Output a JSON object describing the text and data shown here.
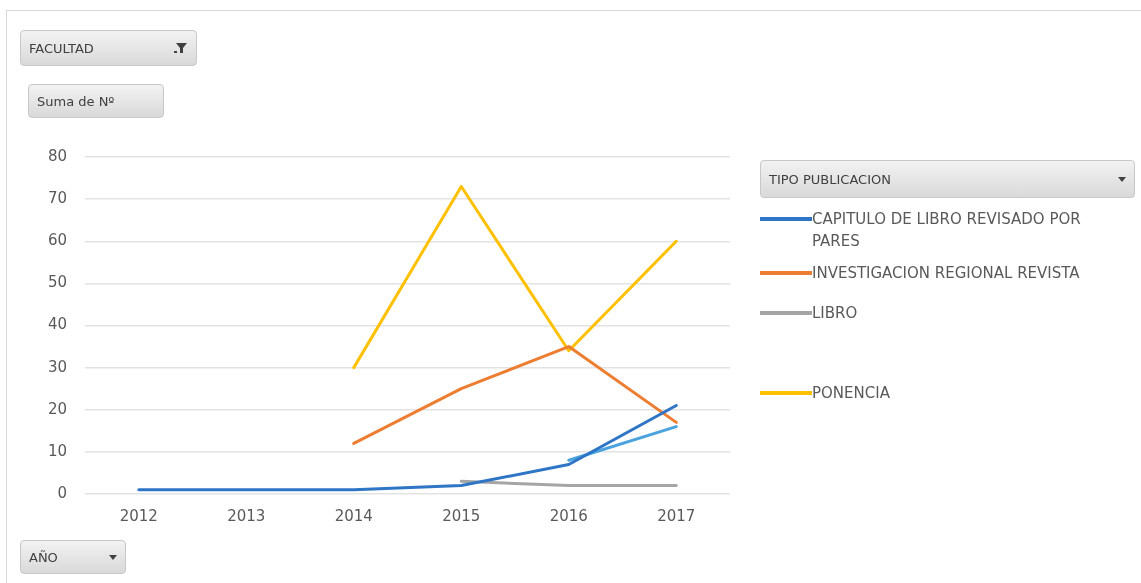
{
  "chart_data": {
    "type": "line",
    "xlabel": "AÑO",
    "ylabel": "Suma de Nº",
    "legend_title": "TIPO PUBLICACION",
    "annotations": [
      "FACULTAD"
    ],
    "categories": [
      "2012",
      "2013",
      "2014",
      "2015",
      "2016",
      "2017"
    ],
    "series": [
      {
        "name": "CAPITULO DE LIBRO REVISADO POR PARES",
        "color": "#2e75c6",
        "values": [
          1,
          1,
          1,
          2,
          7,
          21
        ]
      },
      {
        "name": "INVESTIGACION REGIONAL REVISTA",
        "color": "#ed7d31",
        "values": [
          null,
          null,
          12,
          25,
          35,
          17
        ]
      },
      {
        "name": "LIBRO",
        "color": "#a5a5a5",
        "values": [
          null,
          null,
          null,
          3,
          2,
          2
        ]
      },
      {
        "color": "#4aa3df",
        "values": [
          null,
          null,
          null,
          null,
          8,
          16
        ]
      },
      {
        "name": "PONENCIA",
        "color": "#ffc000",
        "values": [
          null,
          null,
          30,
          73,
          34,
          60
        ]
      }
    ],
    "ylim": [
      0,
      80
    ],
    "yticks": [
      0,
      10,
      20,
      30,
      40,
      50,
      60,
      70,
      80
    ],
    "grid": "y",
    "legend": "right",
    "marker": "none",
    "line_style": "solid"
  }
}
